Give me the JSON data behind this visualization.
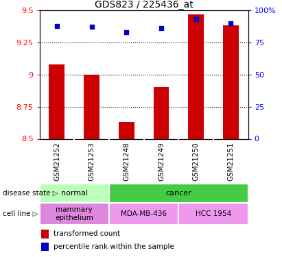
{
  "title": "GDS823 / 225436_at",
  "samples": [
    "GSM21252",
    "GSM21253",
    "GSM21248",
    "GSM21249",
    "GSM21250",
    "GSM21251"
  ],
  "transformed_counts": [
    9.08,
    9.0,
    8.63,
    8.9,
    9.47,
    9.38
  ],
  "percentile_ranks": [
    88,
    87,
    83,
    86,
    93,
    90
  ],
  "ylim_left": [
    8.5,
    9.5
  ],
  "ylim_right": [
    0,
    100
  ],
  "yticks_left": [
    8.5,
    8.75,
    9.0,
    9.25,
    9.5
  ],
  "yticks_right": [
    0,
    25,
    50,
    75,
    100
  ],
  "ytick_labels_left": [
    "8.5",
    "8.75",
    "9",
    "9.25",
    "9.5"
  ],
  "ytick_labels_right": [
    "0",
    "25",
    "50",
    "75",
    "100%"
  ],
  "bar_color": "#cc0000",
  "scatter_color": "#0000cc",
  "disease_state_groups": [
    {
      "label": "normal",
      "span": [
        0,
        2
      ],
      "color": "#bbffbb"
    },
    {
      "label": "cancer",
      "span": [
        2,
        6
      ],
      "color": "#44cc44"
    }
  ],
  "cell_line_groups": [
    {
      "label": "mammary\nepithelium",
      "span": [
        0,
        2
      ],
      "color": "#dd88dd"
    },
    {
      "label": "MDA-MB-436",
      "span": [
        2,
        4
      ],
      "color": "#ee99ee"
    },
    {
      "label": "HCC 1954",
      "span": [
        4,
        6
      ],
      "color": "#ee99ee"
    }
  ],
  "legend_items": [
    {
      "color": "#cc0000",
      "label": "transformed count"
    },
    {
      "color": "#0000cc",
      "label": "percentile rank within the sample"
    }
  ],
  "bar_bottom": 8.5,
  "axes_bg": "#ffffff",
  "sample_row_color": "#c8c8c8",
  "sample_row_divider": "#ffffff"
}
